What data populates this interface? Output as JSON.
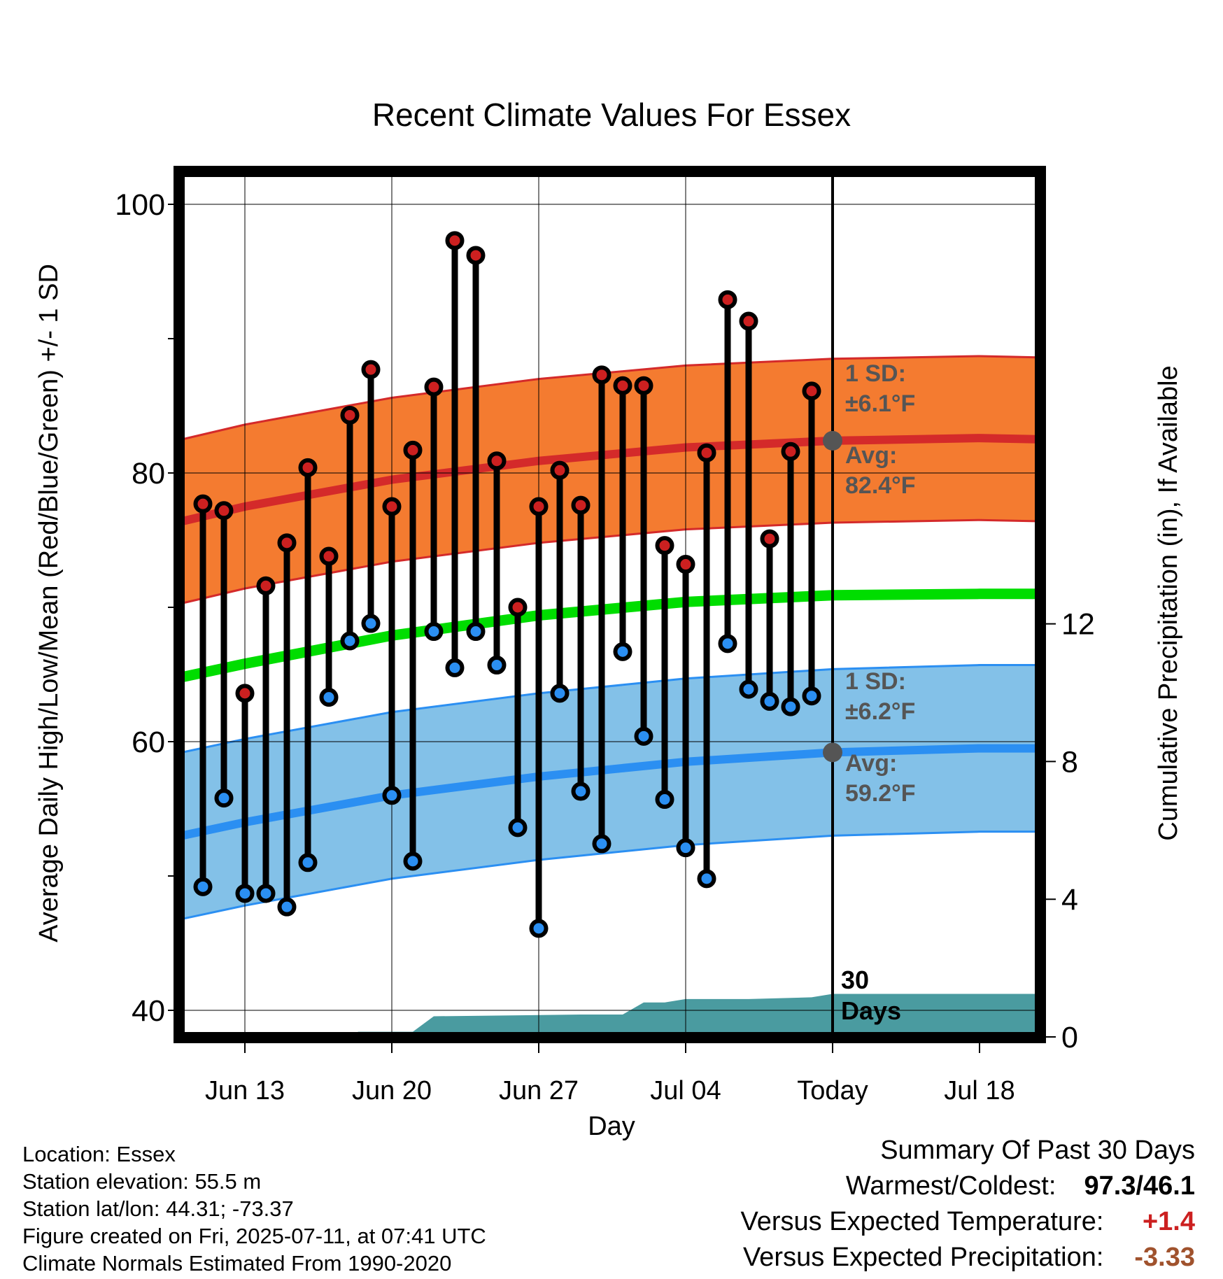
{
  "chart_data": {
    "type": "line",
    "title": "Recent Climate Values For Essex",
    "xlabel": "Day",
    "ylabel": "Average Daily High/Low/Mean (Red/Blue/Green) +/- 1 SD",
    "y2label": "Cumulative Precipitation (in), If Available",
    "ylim": [
      38.5,
      102.5
    ],
    "y2lim": [
      0,
      24.25
    ],
    "yticks": [
      100,
      80,
      60,
      40
    ],
    "y2ticks": [
      0,
      4,
      8,
      12
    ],
    "xlim": [
      -3.7,
      25.3
    ],
    "xticks": [
      {
        "day": 0,
        "label": "Jun 13"
      },
      {
        "day": 7,
        "label": "Jun 20"
      },
      {
        "day": 14,
        "label": "Jun 27"
      },
      {
        "day": 21,
        "label": "Jul 04"
      },
      {
        "day": 28,
        "label": "Today"
      },
      {
        "day": 35,
        "label": "Jul 18"
      }
    ],
    "days": [
      "Jun 11",
      "Jun 12",
      "Jun 13",
      "Jun 14",
      "Jun 15",
      "Jun 16",
      "Jun 17",
      "Jun 18",
      "Jun 19",
      "Jun 20",
      "Jun 21",
      "Jun 22",
      "Jun 23",
      "Jun 24",
      "Jun 25",
      "Jun 26",
      "Jun 27",
      "Jun 28",
      "Jun 29",
      "Jun 30",
      "Jul 01",
      "Jul 02",
      "Jul 03",
      "Jul 04",
      "Jul 05",
      "Jul 06",
      "Jul 07",
      "Jul 08",
      "Jul 09",
      "Jul 10"
    ],
    "high": [
      77.7,
      77.2,
      63.6,
      71.6,
      74.8,
      80.4,
      73.8,
      84.3,
      87.7,
      77.5,
      81.7,
      86.4,
      97.3,
      96.2,
      80.9,
      70.0,
      77.5,
      80.2,
      77.6,
      87.3,
      86.5,
      86.5,
      74.6,
      73.2,
      81.5,
      92.9,
      91.3,
      75.1,
      81.6,
      86.1
    ],
    "low": [
      49.2,
      55.8,
      48.7,
      48.7,
      47.7,
      51.0,
      63.3,
      67.5,
      68.8,
      56.0,
      51.1,
      68.2,
      65.5,
      68.2,
      65.7,
      53.6,
      46.1,
      63.6,
      56.3,
      52.4,
      66.7,
      60.4,
      55.7,
      52.1,
      49.8,
      67.3,
      63.9,
      63.0,
      62.6,
      63.4
    ],
    "normal_high": [
      {
        "day": -3,
        "avg": 76.4
      },
      {
        "day": 0,
        "avg": 77.5
      },
      {
        "day": 7,
        "avg": 79.5
      },
      {
        "day": 14,
        "avg": 80.9
      },
      {
        "day": 21,
        "avg": 81.9
      },
      {
        "day": 28,
        "avg": 82.4
      },
      {
        "day": 35,
        "avg": 82.6
      },
      {
        "day": 38,
        "avg": 82.5
      }
    ],
    "high_sd": 6.1,
    "normal_mean": [
      {
        "day": -3,
        "avg": 64.8
      },
      {
        "day": 0,
        "avg": 65.8
      },
      {
        "day": 7,
        "avg": 67.9
      },
      {
        "day": 14,
        "avg": 69.4
      },
      {
        "day": 21,
        "avg": 70.4
      },
      {
        "day": 28,
        "avg": 70.9
      },
      {
        "day": 35,
        "avg": 71.0
      },
      {
        "day": 38,
        "avg": 71.0
      }
    ],
    "normal_low": [
      {
        "day": -3,
        "avg": 53.0
      },
      {
        "day": 0,
        "avg": 54.0
      },
      {
        "day": 7,
        "avg": 56.0
      },
      {
        "day": 14,
        "avg": 57.4
      },
      {
        "day": 21,
        "avg": 58.5
      },
      {
        "day": 28,
        "avg": 59.2
      },
      {
        "day": 35,
        "avg": 59.5
      },
      {
        "day": 38,
        "avg": 59.5
      }
    ],
    "low_sd": 6.2,
    "precip_cumulative": [
      {
        "day": -3,
        "value": 0.0
      },
      {
        "day": 4.9,
        "value": 0.0
      },
      {
        "day": 5.4,
        "value": 0.15
      },
      {
        "day": 7,
        "value": 0.15
      },
      {
        "day": 8,
        "value": 0.15
      },
      {
        "day": 9,
        "value": 0.6
      },
      {
        "day": 12,
        "value": 0.62
      },
      {
        "day": 16,
        "value": 0.65
      },
      {
        "day": 18,
        "value": 0.65
      },
      {
        "day": 19,
        "value": 1.0
      },
      {
        "day": 20,
        "value": 1.0
      },
      {
        "day": 21,
        "value": 1.1
      },
      {
        "day": 24,
        "value": 1.1
      },
      {
        "day": 27,
        "value": 1.15
      },
      {
        "day": 28,
        "value": 1.25
      },
      {
        "day": 38,
        "value": 1.25
      }
    ],
    "annotations": {
      "high_sd_label": "1 SD:",
      "high_sd_value": "±6.1°F",
      "high_avg_label": "Avg:",
      "high_avg_value": "82.4°F",
      "low_sd_label": "1 SD:",
      "low_sd_value": "±6.2°F",
      "low_avg_label": "Avg:",
      "low_avg_value": "59.2°F",
      "window_line1": "30",
      "window_line2": "Days"
    },
    "colors": {
      "high": "#d42a2a",
      "high_band": "#f47b30",
      "low": "#2b8ff2",
      "low_band": "#83c1e8",
      "mean": "#00dd00",
      "precip": "#4a9ba0",
      "marker_high": "#cc2020",
      "marker_low": "#2b8ff2",
      "today_marker": "#555555",
      "annotation": "#555555"
    },
    "grid": true
  },
  "footer": {
    "location": "Location: Essex",
    "elevation": "Station elevation: 55.5 m",
    "latlon": "Station lat/lon: 44.31; -73.37",
    "created": "Figure created on Fri, 2025-07-11, at 07:41 UTC",
    "normals": "Climate Normals Estimated From 1990-2020"
  },
  "summary": {
    "heading": "Summary Of Past 30 Days",
    "warm_cold_label": "Warmest/Coldest:",
    "warm_cold_value": "97.3/46.1",
    "temp_label": "Versus Expected Temperature:",
    "temp_value": "+1.4",
    "temp_color": "#cc2020",
    "precip_label": "Versus Expected Precipitation:",
    "precip_value": "-3.33",
    "precip_color": "#a0522d"
  }
}
